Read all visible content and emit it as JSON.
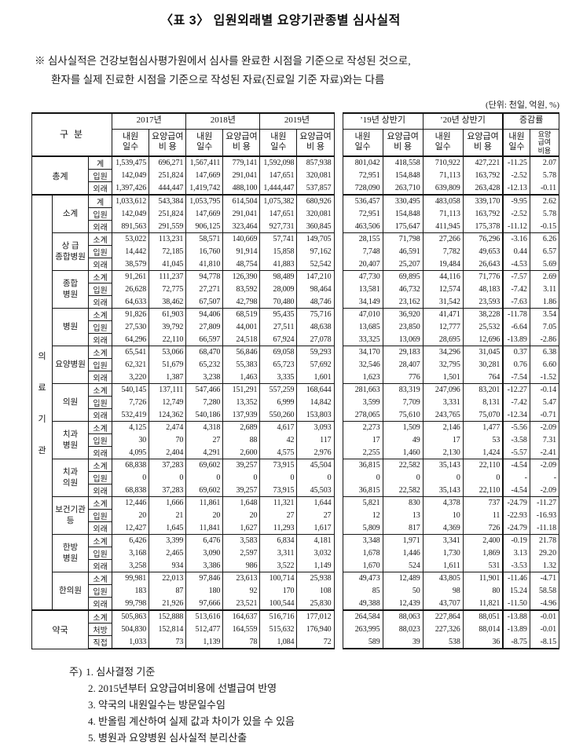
{
  "page": {
    "title": "〈표 3〉 입원외래별 요양기관종별 심사실적",
    "preamble_marker": "※",
    "preamble_line1": "심사실적은 건강보험심사평가원에서 심사를 완료한 시점을 기준으로 작성된 것으로,",
    "preamble_line2": "환자를 실제 진료한 시점을 기준으로 작성된 자료(진료일 기준 자료)와는 다름",
    "unit_label": "(단위: 천일, 억원, %)"
  },
  "table": {
    "corner_label": "구 분",
    "year_groups": [
      "2017년",
      "2018년",
      "2019년",
      "’19년 상반기",
      "’20년 상반기",
      "증감률"
    ],
    "sub_headers": {
      "visit_days": "내원\n일수",
      "benefit_cost": "요양급여\n비    용",
      "change_visit": "내원\n일수",
      "change_cost": "요양\n급여\n비용"
    },
    "sections": [
      {
        "group": "총계",
        "span2": true,
        "vertical": false,
        "subgroups": [
          {
            "label": "",
            "rows": [
              {
                "label": "계",
                "values": [
                  "1,539,475",
                  "696,271",
                  "1,567,411",
                  "779,141",
                  "1,592,098",
                  "857,938",
                  "801,042",
                  "418,558",
                  "710,922",
                  "427,221",
                  "-11.25",
                  "2.07"
                ]
              },
              {
                "label": "입원",
                "values": [
                  "142,049",
                  "251,824",
                  "147,669",
                  "291,041",
                  "147,651",
                  "320,081",
                  "72,951",
                  "154,848",
                  "71,113",
                  "163,792",
                  "-2.52",
                  "5.78"
                ]
              },
              {
                "label": "외래",
                "values": [
                  "1,397,426",
                  "444,447",
                  "1,419,742",
                  "488,100",
                  "1,444,447",
                  "537,857",
                  "728,090",
                  "263,710",
                  "639,809",
                  "263,428",
                  "-12.13",
                  "-0.11"
                ]
              }
            ]
          }
        ]
      },
      {
        "group": "의료기관",
        "span2": false,
        "vertical": true,
        "subgroups": [
          {
            "label": "소계",
            "rows": [
              {
                "label": "계",
                "values": [
                  "1,033,612",
                  "543,384",
                  "1,053,795",
                  "614,504",
                  "1,075,382",
                  "680,926",
                  "536,457",
                  "330,495",
                  "483,058",
                  "339,170",
                  "-9.95",
                  "2.62"
                ]
              },
              {
                "label": "입원",
                "values": [
                  "142,049",
                  "251,824",
                  "147,669",
                  "291,041",
                  "147,651",
                  "320,081",
                  "72,951",
                  "154,848",
                  "71,113",
                  "163,792",
                  "-2.52",
                  "5.78"
                ]
              },
              {
                "label": "외래",
                "values": [
                  "891,563",
                  "291,559",
                  "906,125",
                  "323,464",
                  "927,731",
                  "360,845",
                  "463,506",
                  "175,647",
                  "411,945",
                  "175,378",
                  "-11.12",
                  "-0.15"
                ]
              }
            ]
          },
          {
            "label": "상  급\n종합병원",
            "rows": [
              {
                "label": "소계",
                "values": [
                  "53,022",
                  "113,231",
                  "58,571",
                  "140,669",
                  "57,741",
                  "149,705",
                  "28,155",
                  "71,798",
                  "27,266",
                  "76,296",
                  "-3.16",
                  "6.26"
                ]
              },
              {
                "label": "입원",
                "values": [
                  "14,442",
                  "72,185",
                  "16,760",
                  "91,914",
                  "15,858",
                  "97,162",
                  "7,748",
                  "46,591",
                  "7,782",
                  "49,653",
                  "0.44",
                  "6.57"
                ]
              },
              {
                "label": "외래",
                "values": [
                  "38,579",
                  "41,045",
                  "41,810",
                  "48,754",
                  "41,883",
                  "52,542",
                  "20,407",
                  "25,207",
                  "19,484",
                  "26,643",
                  "-4.53",
                  "5.69"
                ]
              }
            ]
          },
          {
            "label": "종합\n병원",
            "rows": [
              {
                "label": "소계",
                "values": [
                  "91,261",
                  "111,237",
                  "94,778",
                  "126,390",
                  "98,489",
                  "147,210",
                  "47,730",
                  "69,895",
                  "44,116",
                  "71,776",
                  "-7.57",
                  "2.69"
                ]
              },
              {
                "label": "입원",
                "values": [
                  "26,628",
                  "72,775",
                  "27,271",
                  "83,592",
                  "28,009",
                  "98,464",
                  "13,581",
                  "46,732",
                  "12,574",
                  "48,183",
                  "-7.42",
                  "3.11"
                ]
              },
              {
                "label": "외래",
                "values": [
                  "64,633",
                  "38,462",
                  "67,507",
                  "42,798",
                  "70,480",
                  "48,746",
                  "34,149",
                  "23,162",
                  "31,542",
                  "23,593",
                  "-7.63",
                  "1.86"
                ]
              }
            ]
          },
          {
            "label": "병원",
            "rows": [
              {
                "label": "소계",
                "values": [
                  "91,826",
                  "61,903",
                  "94,406",
                  "68,519",
                  "95,435",
                  "75,716",
                  "47,010",
                  "36,920",
                  "41,471",
                  "38,228",
                  "-11.78",
                  "3.54"
                ]
              },
              {
                "label": "입원",
                "values": [
                  "27,530",
                  "39,792",
                  "27,809",
                  "44,001",
                  "27,511",
                  "48,638",
                  "13,685",
                  "23,850",
                  "12,777",
                  "25,532",
                  "-6.64",
                  "7.05"
                ]
              },
              {
                "label": "외래",
                "values": [
                  "64,296",
                  "22,110",
                  "66,597",
                  "24,518",
                  "67,924",
                  "27,078",
                  "33,325",
                  "13,069",
                  "28,695",
                  "12,696",
                  "-13.89",
                  "-2.86"
                ]
              }
            ]
          },
          {
            "label": "요양병원",
            "rows": [
              {
                "label": "소계",
                "values": [
                  "65,541",
                  "53,066",
                  "68,470",
                  "56,846",
                  "69,058",
                  "59,293",
                  "34,170",
                  "29,183",
                  "34,296",
                  "31,045",
                  "0.37",
                  "6.38"
                ]
              },
              {
                "label": "입원",
                "values": [
                  "62,321",
                  "51,679",
                  "65,232",
                  "55,383",
                  "65,723",
                  "57,692",
                  "32,546",
                  "28,407",
                  "32,795",
                  "30,281",
                  "0.76",
                  "6.60"
                ]
              },
              {
                "label": "외래",
                "values": [
                  "3,220",
                  "1,387",
                  "3,238",
                  "1,463",
                  "3,335",
                  "1,601",
                  "1,623",
                  "776",
                  "1,501",
                  "764",
                  "-7.54",
                  "-1.52"
                ]
              }
            ]
          },
          {
            "label": "의원",
            "rows": [
              {
                "label": "소계",
                "values": [
                  "540,145",
                  "137,111",
                  "547,466",
                  "151,291",
                  "557,259",
                  "168,644",
                  "281,663",
                  "83,319",
                  "247,096",
                  "83,201",
                  "-12.27",
                  "-0.14"
                ]
              },
              {
                "label": "입원",
                "values": [
                  "7,726",
                  "12,749",
                  "7,280",
                  "13,352",
                  "6,999",
                  "14,842",
                  "3,599",
                  "7,709",
                  "3,331",
                  "8,131",
                  "-7.42",
                  "5.47"
                ]
              },
              {
                "label": "외래",
                "values": [
                  "532,419",
                  "124,362",
                  "540,186",
                  "137,939",
                  "550,260",
                  "153,803",
                  "278,065",
                  "75,610",
                  "243,765",
                  "75,070",
                  "-12.34",
                  "-0.71"
                ]
              }
            ]
          },
          {
            "label": "치과\n병원",
            "rows": [
              {
                "label": "소계",
                "values": [
                  "4,125",
                  "2,474",
                  "4,318",
                  "2,689",
                  "4,617",
                  "3,093",
                  "2,273",
                  "1,509",
                  "2,146",
                  "1,477",
                  "-5.56",
                  "-2.09"
                ]
              },
              {
                "label": "입원",
                "values": [
                  "30",
                  "70",
                  "27",
                  "88",
                  "42",
                  "117",
                  "17",
                  "49",
                  "17",
                  "53",
                  "-3.58",
                  "7.31"
                ]
              },
              {
                "label": "외래",
                "values": [
                  "4,095",
                  "2,404",
                  "4,291",
                  "2,600",
                  "4,575",
                  "2,976",
                  "2,255",
                  "1,460",
                  "2,130",
                  "1,424",
                  "-5.57",
                  "-2.41"
                ]
              }
            ]
          },
          {
            "label": "치과\n의원",
            "rows": [
              {
                "label": "소계",
                "values": [
                  "68,838",
                  "37,283",
                  "69,602",
                  "39,257",
                  "73,915",
                  "45,504",
                  "36,815",
                  "22,582",
                  "35,143",
                  "22,110",
                  "-4.54",
                  "-2.09"
                ]
              },
              {
                "label": "입원",
                "values": [
                  "0",
                  "0",
                  "0",
                  "0",
                  "0",
                  "0",
                  "0",
                  "0",
                  "0",
                  "0",
                  "-",
                  "-"
                ]
              },
              {
                "label": "외래",
                "values": [
                  "68,838",
                  "37,283",
                  "69,602",
                  "39,257",
                  "73,915",
                  "45,503",
                  "36,815",
                  "22,582",
                  "35,143",
                  "22,110",
                  "-4.54",
                  "-2.09"
                ]
              }
            ]
          },
          {
            "label": "보건기관\n등",
            "rows": [
              {
                "label": "소계",
                "values": [
                  "12,446",
                  "1,666",
                  "11,861",
                  "1,648",
                  "11,321",
                  "1,644",
                  "5,821",
                  "830",
                  "4,378",
                  "737",
                  "-24.79",
                  "-11.27"
                ]
              },
              {
                "label": "입원",
                "values": [
                  "20",
                  "21",
                  "20",
                  "20",
                  "27",
                  "27",
                  "12",
                  "13",
                  "10",
                  "11",
                  "-22.93",
                  "-16.93"
                ]
              },
              {
                "label": "외래",
                "values": [
                  "12,427",
                  "1,645",
                  "11,841",
                  "1,627",
                  "11,293",
                  "1,617",
                  "5,809",
                  "817",
                  "4,369",
                  "726",
                  "-24.79",
                  "-11.18"
                ]
              }
            ]
          },
          {
            "label": "한방\n병원",
            "rows": [
              {
                "label": "소계",
                "values": [
                  "6,426",
                  "3,399",
                  "6,476",
                  "3,583",
                  "6,834",
                  "4,181",
                  "3,348",
                  "1,971",
                  "3,341",
                  "2,400",
                  "-0.19",
                  "21.78"
                ]
              },
              {
                "label": "입원",
                "values": [
                  "3,168",
                  "2,465",
                  "3,090",
                  "2,597",
                  "3,311",
                  "3,032",
                  "1,678",
                  "1,446",
                  "1,730",
                  "1,869",
                  "3.13",
                  "29.20"
                ]
              },
              {
                "label": "외래",
                "values": [
                  "3,258",
                  "934",
                  "3,386",
                  "986",
                  "3,522",
                  "1,149",
                  "1,670",
                  "524",
                  "1,611",
                  "531",
                  "-3.53",
                  "1.32"
                ]
              }
            ]
          },
          {
            "label": "한의원",
            "rows": [
              {
                "label": "소계",
                "values": [
                  "99,981",
                  "22,013",
                  "97,846",
                  "23,613",
                  "100,714",
                  "25,938",
                  "49,473",
                  "12,489",
                  "43,805",
                  "11,901",
                  "-11.46",
                  "-4.71"
                ]
              },
              {
                "label": "입원",
                "values": [
                  "183",
                  "87",
                  "180",
                  "92",
                  "170",
                  "108",
                  "85",
                  "50",
                  "98",
                  "80",
                  "15.24",
                  "58.58"
                ]
              },
              {
                "label": "외래",
                "values": [
                  "99,798",
                  "21,926",
                  "97,666",
                  "23,521",
                  "100,544",
                  "25,830",
                  "49,388",
                  "12,439",
                  "43,707",
                  "11,821",
                  "-11.50",
                  "-4.96"
                ]
              }
            ]
          }
        ]
      },
      {
        "group": "약국",
        "span2": true,
        "vertical": false,
        "subgroups": [
          {
            "label": "",
            "rows": [
              {
                "label": "소계",
                "values": [
                  "505,863",
                  "152,888",
                  "513,616",
                  "164,637",
                  "516,716",
                  "177,012",
                  "264,584",
                  "88,063",
                  "227,864",
                  "88,051",
                  "-13.88",
                  "-0.01"
                ]
              },
              {
                "label": "처방",
                "values": [
                  "504,830",
                  "152,814",
                  "512,477",
                  "164,559",
                  "515,632",
                  "176,940",
                  "263,995",
                  "88,023",
                  "227,326",
                  "88,014",
                  "-13.89",
                  "-0.01"
                ]
              },
              {
                "label": "직접",
                "values": [
                  "1,033",
                  "73",
                  "1,139",
                  "78",
                  "1,084",
                  "72",
                  "589",
                  "39",
                  "538",
                  "36",
                  "-8.75",
                  "-8.15"
                ]
              }
            ]
          }
        ]
      }
    ]
  },
  "footnotes": {
    "prefix": "주)",
    "items": [
      "1. 심사결정 기준",
      "2. 2015년부터 요양급여비용에 선별급여 반영",
      "3. 약국의 내원일수는 방문일수임",
      "4. 반올림 계산하여 실제 값과 차이가 있을 수 있음",
      "5. 병원과 요양병원 심사실적 분리산출"
    ]
  }
}
